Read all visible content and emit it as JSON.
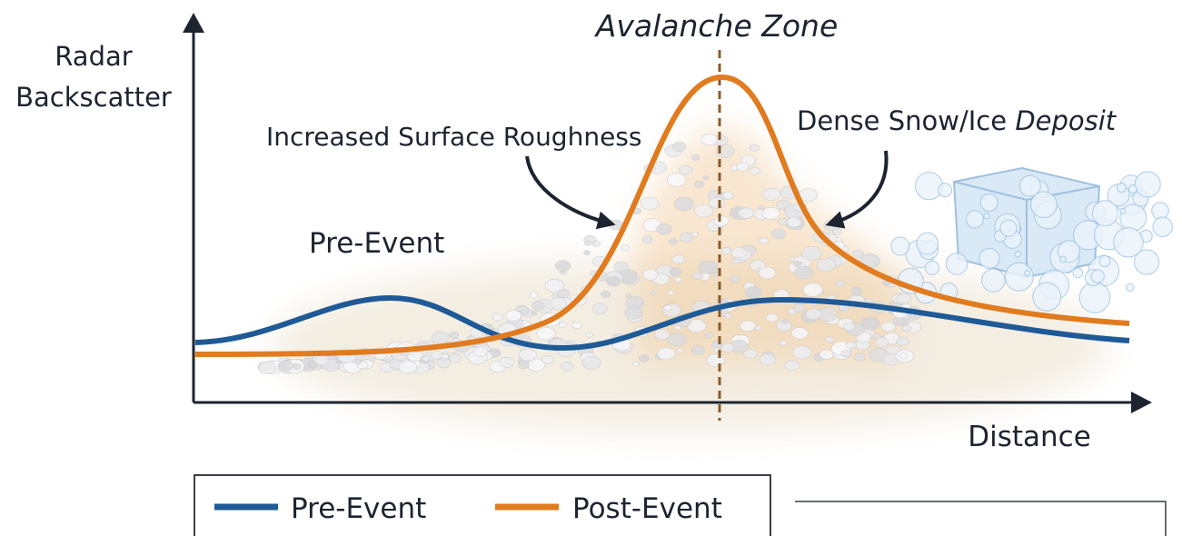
{
  "axes": {
    "y_label": [
      "Radar",
      "Backscatter"
    ],
    "x_label": "Distance"
  },
  "annotations": {
    "zone": "Avalanche Zone",
    "roughness": "Increased Surface Roughness",
    "deposit": "Dense Snow/Ice",
    "deposit_italic": "Deposit",
    "pre_event": "Pre-Event"
  },
  "legend": [
    "Pre-Event",
    "Post-Event"
  ]
}
